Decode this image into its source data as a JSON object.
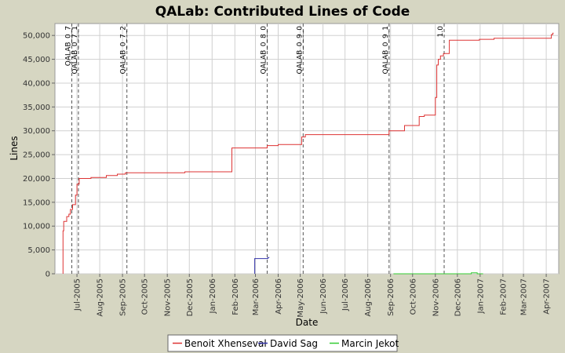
{
  "chart_data": {
    "type": "line",
    "title": "QALab: Contributed Lines of Code",
    "xlabel": "Date",
    "ylabel": "Lines",
    "x_type": "date",
    "xlim": [
      "2005-06-01",
      "2007-04-18"
    ],
    "ylim": [
      0,
      52500
    ],
    "y_ticks": [
      0,
      5000,
      10000,
      15000,
      20000,
      25000,
      30000,
      35000,
      40000,
      45000,
      50000
    ],
    "y_tick_labels": [
      "0",
      "5,000",
      "10,000",
      "15,000",
      "20,000",
      "25,000",
      "30,000",
      "35,000",
      "40,000",
      "45,000",
      "50,000"
    ],
    "x_ticks": [
      "2005-07-01",
      "2005-08-01",
      "2005-09-01",
      "2005-10-01",
      "2005-11-01",
      "2005-12-01",
      "2006-01-01",
      "2006-02-01",
      "2006-03-01",
      "2006-04-01",
      "2006-05-01",
      "2006-06-01",
      "2006-07-01",
      "2006-08-01",
      "2006-09-01",
      "2006-10-01",
      "2006-11-01",
      "2006-12-01",
      "2007-01-01",
      "2007-02-01",
      "2007-03-01",
      "2007-04-01"
    ],
    "x_tick_labels": [
      "Jul-2005",
      "Aug-2005",
      "Sep-2005",
      "Oct-2005",
      "Nov-2005",
      "Dec-2005",
      "Jan-2006",
      "Feb-2006",
      "Mar-2006",
      "Apr-2006",
      "May-2006",
      "Jun-2006",
      "Jul-2006",
      "Aug-2006",
      "Sep-2006",
      "Oct-2006",
      "Nov-2006",
      "Dec-2006",
      "Jan-2007",
      "Feb-2007",
      "Mar-2007",
      "Apr-2007"
    ],
    "grid": true,
    "legend_position": "bottom-center",
    "colors": {
      "background": "#d6d6c2",
      "plot_background": "#ffffff",
      "grid": "#d0d0d0",
      "marker_line": "#555555"
    },
    "markers": [
      {
        "label": "QALAB_0_7",
        "date": "2005-06-24"
      },
      {
        "label": "QALAB_0_7_1",
        "date": "2005-07-03"
      },
      {
        "label": "QALAB_0_7_2",
        "date": "2005-09-07"
      },
      {
        "label": "QALAB_0_8_0",
        "date": "2006-03-17"
      },
      {
        "label": "QALAB_0_9_0",
        "date": "2006-05-05"
      },
      {
        "label": "QALAB_0_9_1",
        "date": "2006-08-30"
      },
      {
        "label": "1.0",
        "date": "2006-11-13"
      }
    ],
    "series": [
      {
        "name": "Benoit Xhenseval",
        "color": "#dd3333",
        "points": [
          [
            "2005-06-12",
            0
          ],
          [
            "2005-06-12",
            9000
          ],
          [
            "2005-06-13",
            9000
          ],
          [
            "2005-06-13",
            11000
          ],
          [
            "2005-06-17",
            11000
          ],
          [
            "2005-06-17",
            12000
          ],
          [
            "2005-06-20",
            12000
          ],
          [
            "2005-06-20",
            12500
          ],
          [
            "2005-06-22",
            12500
          ],
          [
            "2005-06-22",
            13500
          ],
          [
            "2005-06-25",
            13500
          ],
          [
            "2005-06-25",
            14500
          ],
          [
            "2005-06-29",
            14500
          ],
          [
            "2005-06-29",
            16500
          ],
          [
            "2005-07-01",
            16500
          ],
          [
            "2005-07-01",
            18800
          ],
          [
            "2005-07-04",
            18800
          ],
          [
            "2005-07-04",
            20000
          ],
          [
            "2005-07-20",
            20000
          ],
          [
            "2005-07-20",
            20200
          ],
          [
            "2005-08-10",
            20200
          ],
          [
            "2005-08-10",
            20600
          ],
          [
            "2005-08-25",
            20600
          ],
          [
            "2005-08-25",
            20900
          ],
          [
            "2005-09-05",
            20900
          ],
          [
            "2005-09-05",
            21200
          ],
          [
            "2005-11-25",
            21200
          ],
          [
            "2005-11-25",
            21400
          ],
          [
            "2006-01-28",
            21400
          ],
          [
            "2006-01-28",
            26400
          ],
          [
            "2006-03-17",
            26400
          ],
          [
            "2006-03-17",
            26900
          ],
          [
            "2006-04-01",
            26900
          ],
          [
            "2006-04-01",
            27100
          ],
          [
            "2006-05-03",
            27100
          ],
          [
            "2006-05-03",
            28700
          ],
          [
            "2006-05-08",
            28700
          ],
          [
            "2006-05-08",
            29200
          ],
          [
            "2006-08-30",
            29200
          ],
          [
            "2006-08-30",
            30000
          ],
          [
            "2006-09-20",
            30000
          ],
          [
            "2006-09-20",
            31100
          ],
          [
            "2006-10-10",
            31100
          ],
          [
            "2006-10-10",
            33000
          ],
          [
            "2006-10-17",
            33000
          ],
          [
            "2006-10-17",
            33300
          ],
          [
            "2006-11-01",
            33300
          ],
          [
            "2006-11-01",
            37000
          ],
          [
            "2006-11-03",
            37000
          ],
          [
            "2006-11-03",
            43800
          ],
          [
            "2006-11-05",
            43800
          ],
          [
            "2006-11-05",
            45000
          ],
          [
            "2006-11-08",
            45000
          ],
          [
            "2006-11-08",
            45700
          ],
          [
            "2006-11-12",
            45700
          ],
          [
            "2006-11-12",
            46200
          ],
          [
            "2006-11-20",
            46200
          ],
          [
            "2006-11-20",
            49000
          ],
          [
            "2006-12-31",
            49000
          ],
          [
            "2006-12-31",
            49200
          ],
          [
            "2007-01-20",
            49200
          ],
          [
            "2007-01-20",
            49400
          ],
          [
            "2007-04-08",
            49400
          ],
          [
            "2007-04-08",
            50200
          ],
          [
            "2007-04-10",
            50200
          ],
          [
            "2007-04-10",
            50500
          ],
          [
            "2007-04-11",
            50500
          ]
        ]
      },
      {
        "name": "David Sag",
        "color": "#3333aa",
        "points": [
          [
            "2006-02-28",
            0
          ],
          [
            "2006-02-28",
            3200
          ],
          [
            "2006-03-18",
            3200
          ],
          [
            "2006-03-18",
            3400
          ],
          [
            "2006-03-20",
            3400
          ]
        ]
      },
      {
        "name": "Marcin Jekot",
        "color": "#33cc33",
        "points": [
          [
            "2006-09-05",
            0
          ],
          [
            "2006-12-20",
            0
          ],
          [
            "2006-12-20",
            200
          ],
          [
            "2006-12-28",
            200
          ],
          [
            "2006-12-28",
            0
          ],
          [
            "2007-01-05",
            0
          ]
        ]
      }
    ]
  }
}
